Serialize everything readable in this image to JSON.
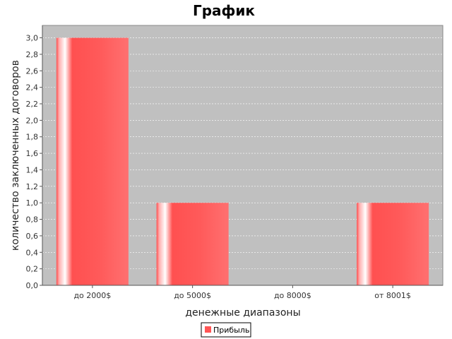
{
  "chart_data": {
    "type": "bar",
    "title": "График",
    "xlabel": "денежные диапазоны",
    "ylabel": "количество заключенных договоров",
    "categories": [
      "до 2000$",
      "до 5000$",
      "до 8000$",
      "от 8001$"
    ],
    "series": [
      {
        "name": "Прибыль",
        "values": [
          3,
          1,
          0,
          1
        ],
        "color": "#ff5555"
      }
    ],
    "ylim": [
      0,
      3.15
    ],
    "yticks": [
      "0,0",
      "0,2",
      "0,4",
      "0,6",
      "0,8",
      "1,0",
      "1,2",
      "1,4",
      "1,6",
      "1,8",
      "2,0",
      "2,2",
      "2,4",
      "2,6",
      "2,8",
      "3,0"
    ],
    "grid": true,
    "legend_position": "bottom",
    "plot_background": "#c0c0c0"
  }
}
